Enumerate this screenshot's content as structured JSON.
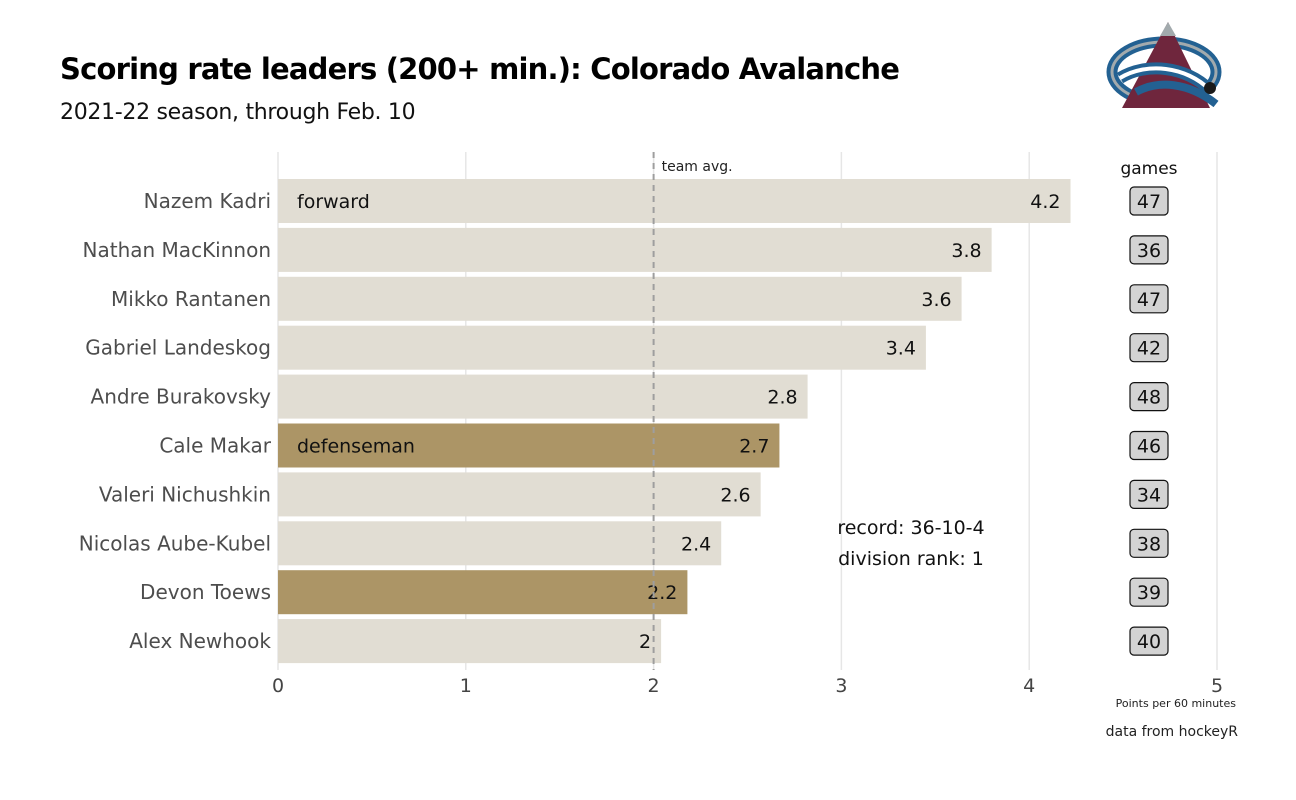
{
  "header": {
    "title": "Scoring rate leaders (200+ min.): Colorado Avalanche",
    "subtitle": "2021-22 season, through Feb. 10"
  },
  "caption": "data from hockeyR",
  "logo": {
    "icon": "colorado-avalanche-logo",
    "colors": [
      "#6f263d",
      "#236192",
      "#a2aaad"
    ]
  },
  "chart_data": {
    "type": "bar",
    "orientation": "horizontal",
    "categories": [
      "Nazem Kadri",
      "Nathan MacKinnon",
      "Mikko Rantanen",
      "Gabriel Landeskog",
      "Andre Burakovsky",
      "Cale Makar",
      "Valeri Nichushkin",
      "Nicolas Aube-Kubel",
      "Devon Toews",
      "Alex Newhook"
    ],
    "values": [
      4.22,
      3.8,
      3.64,
      3.45,
      2.82,
      2.67,
      2.57,
      2.36,
      2.18,
      2.04
    ],
    "value_labels": [
      "4.2",
      "3.8",
      "3.6",
      "3.4",
      "2.8",
      "2.7",
      "2.6",
      "2.4",
      "2.2",
      "2"
    ],
    "positions": [
      "forward",
      "forward",
      "forward",
      "forward",
      "forward",
      "defenseman",
      "forward",
      "forward",
      "defenseman",
      "forward"
    ],
    "position_labels": [
      {
        "player": "Nazem Kadri",
        "text": "forward"
      },
      {
        "player": "Cale Makar",
        "text": "defenseman"
      }
    ],
    "games_header": "games",
    "games": [
      "47",
      "36",
      "47",
      "42",
      "48",
      "46",
      "34",
      "38",
      "39",
      "40"
    ],
    "xlabel": "Points per 60 minutes",
    "xlim": [
      0,
      5
    ],
    "xticks": [
      "0",
      "1",
      "2",
      "3",
      "4",
      "5"
    ],
    "reference_line": {
      "value": 2.0,
      "label": "team avg."
    },
    "annotation": [
      "record: 36-10-4",
      "division rank: 1"
    ],
    "colors": {
      "forward": "#e1ddd3",
      "defenseman": "#ac9566",
      "grid": "#e6e6e6",
      "reference": "#9e9e9e",
      "games_box": "#d3d3d3"
    },
    "grid": true,
    "legend": "none"
  }
}
